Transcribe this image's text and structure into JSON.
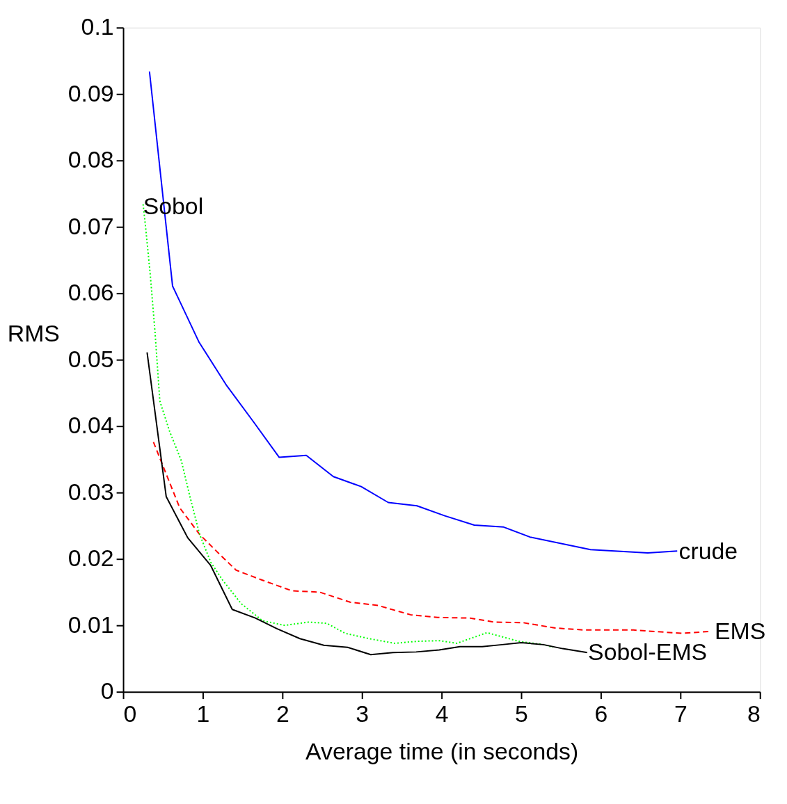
{
  "chart_data": {
    "type": "line",
    "xlabel": "Average time (in  seconds)",
    "ylabel": "RMS",
    "xlim": [
      0,
      8
    ],
    "ylim": [
      0,
      0.1
    ],
    "xticks": [
      0,
      1,
      2,
      3,
      4,
      5,
      6,
      7,
      8
    ],
    "yticks": [
      0,
      0.01,
      0.02,
      0.03,
      0.04,
      0.05,
      0.06,
      0.07,
      0.08,
      0.09,
      0.1
    ],
    "marker": "none",
    "series": [
      {
        "color": "#0000ff",
        "line_style": "solid",
        "x": [
          0.33,
          0.62,
          0.95,
          1.3,
          1.64,
          1.96,
          2.3,
          2.64,
          2.99,
          3.33,
          3.69,
          4.04,
          4.41,
          4.78,
          5.11,
          5.87,
          6.59,
          6.96
        ],
        "values": [
          0.0934,
          0.0611,
          0.0527,
          0.0461,
          0.0406,
          0.0353,
          0.0356,
          0.0324,
          0.0309,
          0.0285,
          0.028,
          0.0265,
          0.0251,
          0.0248,
          0.0233,
          0.0214,
          0.0209,
          0.0212
        ]
      },
      {
        "color": "#ff0000",
        "line_style": "dashed",
        "x": [
          0.38,
          0.71,
          0.96,
          1.22,
          1.42,
          1.75,
          2.12,
          2.47,
          2.85,
          3.2,
          3.61,
          3.95,
          4.36,
          4.66,
          5.03,
          5.43,
          5.8,
          6.41,
          7.02,
          7.39
        ],
        "values": [
          0.0376,
          0.0277,
          0.0237,
          0.0206,
          0.0183,
          0.0168,
          0.0152,
          0.015,
          0.0135,
          0.013,
          0.0116,
          0.0112,
          0.0111,
          0.0105,
          0.0104,
          0.0096,
          0.0093,
          0.0093,
          0.0088,
          0.0091
        ]
      },
      {
        "color": "#00ff00",
        "line_style": "dotted",
        "x": [
          0.25,
          0.28,
          0.34,
          0.4,
          0.46,
          0.58,
          0.73,
          0.84,
          0.96,
          1.1,
          1.25,
          1.48,
          1.75,
          2.03,
          2.33,
          2.56,
          2.79,
          3.09,
          3.41,
          3.69,
          3.97,
          4.19,
          4.57,
          4.97,
          5.28,
          5.4
        ],
        "values": [
          0.0734,
          0.0701,
          0.0628,
          0.0541,
          0.0438,
          0.0393,
          0.0348,
          0.0293,
          0.0237,
          0.0195,
          0.0168,
          0.0133,
          0.0107,
          0.01,
          0.0105,
          0.0103,
          0.0088,
          0.008,
          0.0073,
          0.0076,
          0.0077,
          0.0073,
          0.0089,
          0.0076,
          0.0071,
          0.0067
        ]
      },
      {
        "color": "#000000",
        "line_style": "solid",
        "x": [
          0.3,
          0.54,
          0.81,
          1.1,
          1.37,
          1.66,
          1.93,
          2.22,
          2.52,
          2.82,
          3.11,
          3.39,
          3.68,
          3.97,
          4.23,
          4.51,
          4.76,
          5.0,
          5.28,
          5.52,
          5.83
        ],
        "values": [
          0.0511,
          0.0294,
          0.0232,
          0.019,
          0.0124,
          0.0111,
          0.0095,
          0.008,
          0.007,
          0.0067,
          0.0056,
          0.0059,
          0.006,
          0.0063,
          0.0068,
          0.0068,
          0.0071,
          0.0074,
          0.0071,
          0.0065,
          0.0059
        ]
      }
    ],
    "annotations": [
      {
        "text": "Sobol",
        "x": 0.25,
        "y": 0.073
      },
      {
        "text": "crude",
        "x": 6.98,
        "y": 0.021
      },
      {
        "text": "EMS",
        "x": 7.43,
        "y": 0.009
      },
      {
        "text": "Sobol-EMS",
        "x": 5.84,
        "y": 0.0058
      }
    ]
  }
}
